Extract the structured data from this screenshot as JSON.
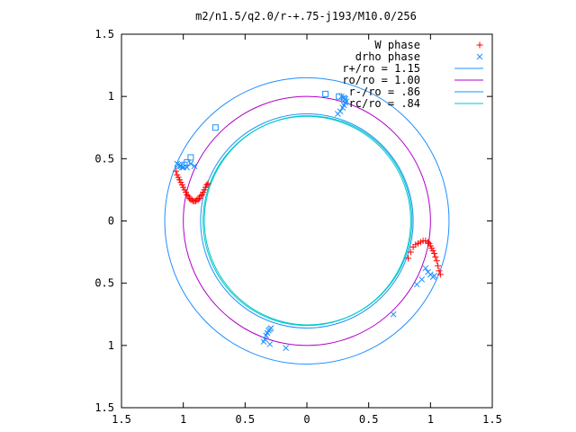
{
  "chart_data": {
    "type": "scatter",
    "title": "m2/n1.5/q2.0/r-+.75-j193/M10.0/256",
    "xlabel": "",
    "ylabel": "",
    "xlim": [
      -1.5,
      1.5
    ],
    "ylim": [
      -1.5,
      1.5
    ],
    "xticks": [
      -1.5,
      -1,
      -0.5,
      0,
      0.5,
      1,
      1.5
    ],
    "yticks": [
      -1.5,
      -1,
      -0.5,
      0,
      0.5,
      1,
      1.5
    ],
    "xtick_labels": [
      "1.5",
      "1",
      "0.5",
      "0",
      "0.5",
      "1",
      "1.5"
    ],
    "ytick_labels": [
      "1.5",
      "1",
      "0.5",
      "0",
      "0.5",
      "1",
      "1.5"
    ],
    "grid": false,
    "legend_position": "top-right",
    "circles": [
      {
        "name": "r+/ro = 1.15",
        "radius": 1.15,
        "color": "#1e90ff"
      },
      {
        "name": "ro/ro = 1.00",
        "radius": 1.0,
        "color": "#b000c8"
      },
      {
        "name": "r-/ro = .86",
        "radius": 0.86,
        "color": "#1e90ff"
      },
      {
        "name": "rc/ro = .84",
        "radius": 0.84,
        "color": "#00c8c8"
      }
    ],
    "w_phase": {
      "name": "W phase",
      "color": "#ff0000",
      "marker": "plus",
      "points": [
        [
          -1.06,
          0.4
        ],
        [
          -1.05,
          0.37
        ],
        [
          -1.04,
          0.35
        ],
        [
          -1.03,
          0.33
        ],
        [
          -1.02,
          0.31
        ],
        [
          -1.01,
          0.29
        ],
        [
          -1.0,
          0.27
        ],
        [
          -0.99,
          0.25
        ],
        [
          -0.98,
          0.23
        ],
        [
          -0.97,
          0.21
        ],
        [
          -0.96,
          0.2
        ],
        [
          -0.95,
          0.18
        ],
        [
          -0.94,
          0.17
        ],
        [
          -0.93,
          0.17
        ],
        [
          -0.92,
          0.16
        ],
        [
          -0.91,
          0.16
        ],
        [
          -0.9,
          0.16
        ],
        [
          -0.89,
          0.17
        ],
        [
          -0.88,
          0.17
        ],
        [
          -0.87,
          0.18
        ],
        [
          -0.86,
          0.2
        ],
        [
          -0.85,
          0.21
        ],
        [
          -0.84,
          0.23
        ],
        [
          -0.83,
          0.25
        ],
        [
          -0.82,
          0.27
        ],
        [
          -0.81,
          0.29
        ],
        [
          -0.8,
          0.3
        ],
        [
          0.82,
          -0.3
        ],
        [
          0.84,
          -0.25
        ],
        [
          0.86,
          -0.21
        ],
        [
          0.88,
          -0.19
        ],
        [
          0.9,
          -0.18
        ],
        [
          0.92,
          -0.17
        ],
        [
          0.94,
          -0.16
        ],
        [
          0.96,
          -0.16
        ],
        [
          0.98,
          -0.17
        ],
        [
          0.99,
          -0.18
        ],
        [
          1.0,
          -0.2
        ],
        [
          1.01,
          -0.22
        ],
        [
          1.02,
          -0.24
        ],
        [
          1.03,
          -0.26
        ],
        [
          1.04,
          -0.29
        ],
        [
          1.05,
          -0.32
        ],
        [
          1.06,
          -0.36
        ],
        [
          1.07,
          -0.4
        ],
        [
          1.08,
          -0.43
        ]
      ]
    },
    "drho_phase": {
      "name": "drho phase",
      "color": "#1e90ff",
      "marker": "cross",
      "points": [
        [
          -1.05,
          0.46
        ],
        [
          -1.04,
          0.45
        ],
        [
          -1.03,
          0.44
        ],
        [
          -1.02,
          0.44
        ],
        [
          -1.01,
          0.43
        ],
        [
          -1.0,
          0.43
        ],
        [
          -0.97,
          0.43
        ],
        [
          -0.91,
          0.44
        ],
        [
          -0.94,
          0.46
        ],
        [
          0.25,
          0.86
        ],
        [
          0.27,
          0.88
        ],
        [
          0.29,
          0.91
        ],
        [
          0.3,
          0.93
        ],
        [
          0.31,
          0.95
        ],
        [
          0.32,
          0.96
        ],
        [
          0.31,
          0.98
        ],
        [
          0.3,
          0.99
        ],
        [
          0.28,
          1.0
        ],
        [
          0.96,
          -0.38
        ],
        [
          0.98,
          -0.41
        ],
        [
          1.0,
          -0.43
        ],
        [
          1.02,
          -0.45
        ],
        [
          1.03,
          -0.44
        ],
        [
          0.93,
          -0.47
        ],
        [
          0.89,
          -0.51
        ],
        [
          0.7,
          -0.75
        ],
        [
          -0.35,
          -0.97
        ],
        [
          -0.34,
          -0.95
        ],
        [
          -0.33,
          -0.92
        ],
        [
          -0.32,
          -0.9
        ],
        [
          -0.31,
          -0.88
        ],
        [
          -0.3,
          -0.87
        ],
        [
          -0.29,
          -0.86
        ],
        [
          -0.3,
          -0.99
        ],
        [
          -0.17,
          -1.02
        ]
      ],
      "square_points": [
        [
          -0.74,
          0.75
        ],
        [
          -0.94,
          0.51
        ],
        [
          -0.97,
          0.47
        ],
        [
          -0.99,
          0.45
        ],
        [
          0.15,
          1.02
        ],
        [
          0.26,
          1.0
        ],
        [
          0.3,
          0.98
        ]
      ]
    }
  }
}
